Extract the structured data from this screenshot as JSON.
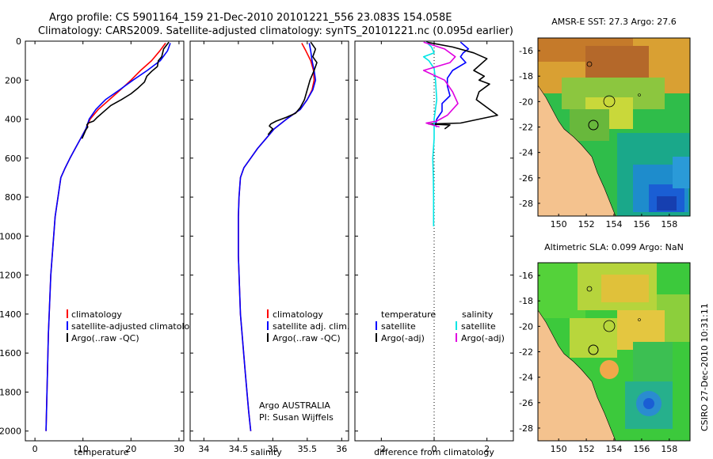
{
  "header": {
    "line1": "Argo profile: CS 5901164_159 21-Dec-2010 20101221_556 23.083S 154.058E",
    "line2": "Climatology: CARS2009. Satellite-adjusted climatology: synTS_20101221.nc (0.095d earlier)"
  },
  "chart_data": [
    {
      "type": "line",
      "name": "temperature",
      "xlabel": "temperature",
      "ylabel": "",
      "xlim": [
        -2,
        31
      ],
      "ylim": [
        2050,
        0
      ],
      "xticks": [
        0,
        10,
        20,
        30
      ],
      "yticks": [
        0,
        200,
        400,
        600,
        800,
        1000,
        1200,
        1400,
        1600,
        1800,
        2000
      ],
      "legend": {
        "position": "lower-right",
        "entries": [
          "climatology",
          "satellite-adjusted climatology",
          "Argo(..raw -QC)"
        ]
      },
      "series": [
        {
          "name": "climatology",
          "color": "#ff0000",
          "x": [
            27.2,
            26.0,
            24.3,
            22.0,
            20.0,
            17.8,
            15.5,
            13.2,
            11.5,
            10.6,
            9.5,
            8.4,
            7.3,
            6.3,
            5.4,
            4.8,
            4.2,
            3.3,
            2.8,
            2.5,
            2.3
          ],
          "y": [
            10,
            50,
            100,
            150,
            200,
            250,
            300,
            350,
            400,
            450,
            500,
            550,
            600,
            650,
            700,
            800,
            900,
            1200,
            1500,
            1800,
            2000
          ]
        },
        {
          "name": "satellite-adjusted climatology",
          "color": "#0000ff",
          "x": [
            28.2,
            27.6,
            26.1,
            23.4,
            20.4,
            17.6,
            14.7,
            12.7,
            11.3,
            10.6,
            9.5,
            8.4,
            7.3,
            6.3,
            5.4,
            4.8,
            4.2,
            3.3,
            2.8,
            2.5,
            2.3
          ],
          "y": [
            10,
            50,
            100,
            150,
            200,
            250,
            300,
            350,
            400,
            450,
            500,
            550,
            600,
            650,
            700,
            800,
            900,
            1200,
            1500,
            1800,
            2000
          ]
        },
        {
          "name": "Argo(..raw -QC)",
          "color": "#000000",
          "x": [
            27.9,
            26.8,
            26.4,
            25.7,
            25.5,
            24.3,
            23.3,
            22.8,
            21.5,
            20.0,
            18.0,
            15.8,
            14.4,
            13.0,
            12.2,
            11.1,
            10.8,
            11.0,
            10.6,
            9.8
          ],
          "y": [
            5,
            40,
            80,
            100,
            130,
            155,
            180,
            210,
            240,
            270,
            300,
            330,
            360,
            390,
            410,
            420,
            430,
            440,
            455,
            500
          ]
        }
      ]
    },
    {
      "type": "line",
      "name": "salinity",
      "xlabel": "salinity",
      "ylabel": "",
      "xlim": [
        33.8,
        36.1
      ],
      "ylim": [
        2050,
        0
      ],
      "xticks": [
        34,
        34.5,
        35,
        35.5,
        36
      ],
      "yticks": [
        0,
        200,
        400,
        600,
        800,
        1000,
        1200,
        1400,
        1600,
        1800,
        2000
      ],
      "legend": {
        "position": "lower-right",
        "entries": [
          "climatology",
          "satellite adj. clim.",
          "Argo(..raw -QC)"
        ]
      },
      "annotation": [
        "Argo AUSTRALIA",
        "PI: Susan Wijffels"
      ],
      "series": [
        {
          "name": "climatology",
          "color": "#ff0000",
          "x": [
            35.42,
            35.48,
            35.55,
            35.59,
            35.6,
            35.57,
            35.5,
            35.4,
            35.2,
            35.02,
            34.9,
            34.78,
            34.68,
            34.58,
            34.53,
            34.51,
            34.5,
            34.5,
            34.53,
            34.6,
            34.65,
            34.68
          ],
          "y": [
            10,
            50,
            100,
            150,
            200,
            250,
            300,
            350,
            400,
            450,
            500,
            550,
            600,
            650,
            700,
            800,
            900,
            1100,
            1400,
            1700,
            1900,
            2000
          ]
        },
        {
          "name": "satellite adj. clim.",
          "color": "#0000ff",
          "x": [
            35.53,
            35.55,
            35.57,
            35.6,
            35.62,
            35.58,
            35.5,
            35.4,
            35.2,
            35.02,
            34.9,
            34.78,
            34.68,
            34.58,
            34.53,
            34.51,
            34.5,
            34.5,
            34.53,
            34.6,
            34.65,
            34.68
          ],
          "y": [
            10,
            50,
            100,
            150,
            200,
            250,
            300,
            350,
            400,
            450,
            500,
            550,
            600,
            650,
            700,
            800,
            900,
            1100,
            1400,
            1700,
            1900,
            2000
          ]
        },
        {
          "name": "Argo(..raw -QC)",
          "color": "#000000",
          "x": [
            35.55,
            35.62,
            35.58,
            35.64,
            35.6,
            35.54,
            35.5,
            35.46,
            35.4,
            35.33,
            35.2,
            35.05,
            34.97,
            34.95,
            35.0,
            34.93
          ],
          "y": [
            5,
            40,
            80,
            110,
            150,
            200,
            250,
            300,
            340,
            370,
            390,
            410,
            425,
            435,
            450,
            480
          ]
        }
      ]
    },
    {
      "type": "line",
      "name": "difference",
      "xlabel": "difference from climatology",
      "ylabel": "",
      "xlim": [
        -3,
        3
      ],
      "ylim": [
        2050,
        0
      ],
      "xticks": [
        -2,
        0,
        2
      ],
      "yticks": [
        0,
        200,
        400,
        600,
        800,
        1000,
        1200,
        1400,
        1600,
        1800,
        2000
      ],
      "legend": {
        "position": "lower-center",
        "headers": [
          "temperature",
          "salinity"
        ],
        "entries": [
          "satellite",
          "Argo(-adj)",
          "satellite",
          "Argo(-adj)"
        ]
      },
      "series": [
        {
          "name": "temperature satellite",
          "color": "#0000ff",
          "x": [
            1.0,
            1.3,
            1.1,
            1.0,
            1.2,
            0.7,
            0.5,
            0.5,
            0.6,
            0.3,
            0.3,
            0.1,
            0.05,
            0.1
          ],
          "y": [
            5,
            40,
            60,
            80,
            110,
            150,
            190,
            230,
            280,
            320,
            360,
            400,
            430,
            440
          ]
        },
        {
          "name": "temperature Argo(-adj)",
          "color": "#000000",
          "x": [
            -0.3,
            0.7,
            1.5,
            2.0,
            1.5,
            1.9,
            1.7,
            2.1,
            1.7,
            1.6,
            2.4,
            1.0,
            -0.2,
            0.6,
            0.4
          ],
          "y": [
            5,
            30,
            60,
            90,
            150,
            180,
            200,
            220,
            260,
            300,
            380,
            420,
            425,
            430,
            450
          ]
        },
        {
          "name": "salinity satellite",
          "color": "#00e5e5",
          "x": [
            -0.3,
            -0.1,
            0.0,
            -0.4,
            -0.2,
            0.0,
            0.05,
            0.1,
            0.0,
            0.0,
            0.0,
            -0.05,
            -0.03,
            -0.02,
            -0.02,
            -0.02
          ],
          "y": [
            5,
            30,
            60,
            80,
            100,
            140,
            200,
            300,
            400,
            450,
            500,
            600,
            700,
            800,
            900,
            950
          ]
        },
        {
          "name": "salinity Argo(-adj)",
          "color": "#e000e0",
          "x": [
            -0.4,
            0.4,
            0.8,
            0.6,
            -0.4,
            0.4,
            0.7,
            0.9,
            0.5,
            0.1,
            -0.3,
            0.2
          ],
          "y": [
            5,
            40,
            80,
            110,
            150,
            200,
            260,
            320,
            380,
            410,
            420,
            440
          ]
        }
      ]
    },
    {
      "type": "heatmap",
      "name": "sst-map",
      "title": "AMSR-E SST: 27.3 Argo: 27.6",
      "xlim": [
        148.5,
        159.5
      ],
      "ylim": [
        -29,
        -15
      ],
      "xticks": [
        150,
        152,
        154,
        156,
        158
      ],
      "yticks": [
        -16,
        -18,
        -20,
        -22,
        -24,
        -26,
        -28
      ],
      "argo_position": [
        154.058,
        -23.083
      ]
    },
    {
      "type": "heatmap",
      "name": "sla-map",
      "title": "Altimetric SLA: 0.099 Argo: NaN",
      "xlim": [
        148.5,
        159.5
      ],
      "ylim": [
        -29,
        -15
      ],
      "xticks": [
        150,
        152,
        154,
        156,
        158
      ],
      "yticks": [
        -16,
        -18,
        -20,
        -22,
        -24,
        -26,
        -28
      ],
      "argo_position": [
        154.058,
        -23.083
      ]
    }
  ],
  "footer_stamp": "CSIRO 27-Dec-2010 10:31:11"
}
